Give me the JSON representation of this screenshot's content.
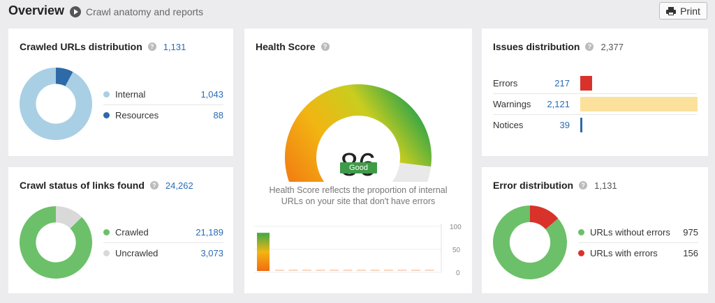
{
  "header": {
    "title": "Overview",
    "subtitle": "Crawl anatomy and reports",
    "print_label": "Print"
  },
  "crawled_urls": {
    "title": "Crawled URLs distribution",
    "total": "1,131",
    "items": [
      {
        "label": "Internal",
        "value": "1,043",
        "num": 1043,
        "color": "#a9cfe4"
      },
      {
        "label": "Resources",
        "value": "88",
        "num": 88,
        "color": "#2e69a8"
      }
    ]
  },
  "crawl_status": {
    "title": "Crawl status of links found",
    "total": "24,262",
    "items": [
      {
        "label": "Crawled",
        "value": "21,189",
        "num": 21189,
        "color": "#6cc069"
      },
      {
        "label": "Uncrawled",
        "value": "3,073",
        "num": 3073,
        "color": "#d9d9d9"
      }
    ]
  },
  "health": {
    "title": "Health Score",
    "score": "86",
    "score_num": 86,
    "badge": "Good",
    "description": "Health Score reflects the proportion of internal URLs on your site that don't have errors",
    "axis_ticks": [
      "100",
      "50",
      "0"
    ],
    "history_value": 86
  },
  "issues": {
    "title": "Issues distribution",
    "total": "2,377",
    "items": [
      {
        "label": "Errors",
        "value": "217",
        "num": 217,
        "color": "#d9322a"
      },
      {
        "label": "Warnings",
        "value": "2,121",
        "num": 2121,
        "color": "#fbe19b"
      },
      {
        "label": "Notices",
        "value": "39",
        "num": 39,
        "color": "#2e69a8"
      }
    ]
  },
  "error_dist": {
    "title": "Error distribution",
    "total": "1,131",
    "items": [
      {
        "label": "URLs without errors",
        "value": "975",
        "num": 975,
        "color": "#6cc069"
      },
      {
        "label": "URLs with errors",
        "value": "156",
        "num": 156,
        "color": "#d9322a"
      }
    ]
  }
}
